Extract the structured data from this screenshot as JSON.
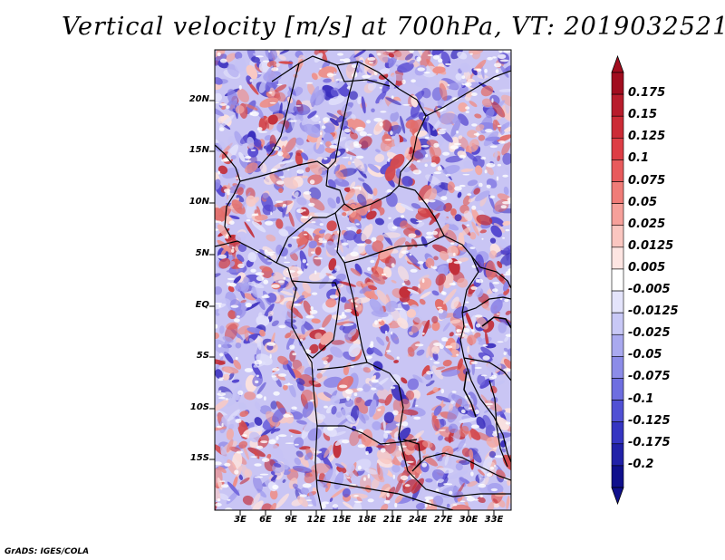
{
  "title": "Vertical velocity [m/s] at 700hPa, VT: 2019032521",
  "footer": "GrADS: IGES/COLA",
  "map": {
    "lat_labels": [
      "20N",
      "15N",
      "10N",
      "5N",
      "EQ",
      "5S",
      "10S",
      "15S"
    ],
    "lon_labels": [
      "3E",
      "6E",
      "9E",
      "12E",
      "15E",
      "18E",
      "21E",
      "24E",
      "27E",
      "30E",
      "33E"
    ]
  },
  "colorbar": {
    "labels": [
      "0.175",
      "0.15",
      "0.125",
      "0.1",
      "0.075",
      "0.05",
      "0.025",
      "0.0125",
      "0.005",
      "-0.005",
      "-0.0125",
      "-0.025",
      "-0.05",
      "-0.075",
      "-0.1",
      "-0.125",
      "-0.175",
      "-0.2"
    ],
    "colors": [
      "#a10d1f",
      "#b81c2c",
      "#cc2b36",
      "#dd3d45",
      "#e85a5c",
      "#f07c78",
      "#f6a09a",
      "#fac6c0",
      "#fde5e2",
      "#ffffff",
      "#e4e4fb",
      "#c8c8f6",
      "#a9a9ef",
      "#8c8ce8",
      "#6e6ee0",
      "#5050d4",
      "#3535c2",
      "#2121a8",
      "#10108c"
    ]
  },
  "chart_data": {
    "type": "heatmap",
    "title": "Vertical velocity [m/s] at 700hPa, VT: 2019032521",
    "variable": "Vertical velocity",
    "units": "m/s",
    "level": "700hPa",
    "valid_time": "2019032521",
    "x_range": [
      0,
      35
    ],
    "y_range": [
      -20,
      25
    ],
    "x_ticks": [
      "3E",
      "6E",
      "9E",
      "12E",
      "15E",
      "18E",
      "21E",
      "24E",
      "27E",
      "30E",
      "33E"
    ],
    "y_ticks": [
      "20N",
      "15N",
      "10N",
      "5N",
      "EQ",
      "5S",
      "10S",
      "15S"
    ],
    "levels": [
      -0.2,
      -0.175,
      -0.125,
      -0.1,
      -0.075,
      -0.05,
      -0.025,
      -0.0125,
      -0.005,
      0.005,
      0.0125,
      0.025,
      0.05,
      0.075,
      0.1,
      0.125,
      0.15,
      0.175
    ]
  }
}
